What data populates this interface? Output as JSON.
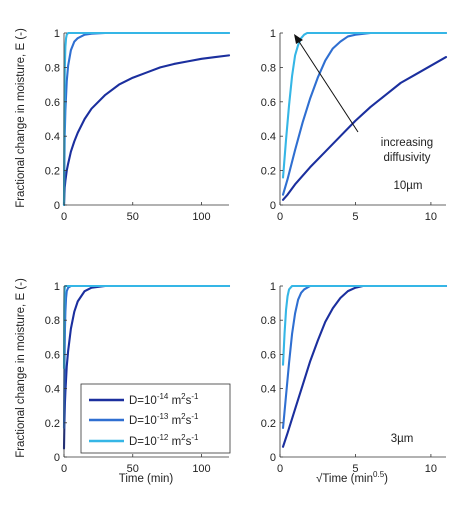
{
  "figure": {
    "ylabel": "Fractional change in moisture, E (-)",
    "legend_entries": [
      {
        "base": "D=10",
        "exp": "-14",
        "unit_base": "m",
        "unit_exp": "2",
        "unit_mid": "s",
        "unit_exp2": "-1",
        "color": "#1b2f9e"
      },
      {
        "base": "D=10",
        "exp": "-13",
        "unit_base": "m",
        "unit_exp": "2",
        "unit_mid": "s",
        "unit_exp2": "-1",
        "color": "#2f6fd1"
      },
      {
        "base": "D=10",
        "exp": "-12",
        "unit_base": "m",
        "unit_exp": "2",
        "unit_mid": "s",
        "unit_exp2": "-1",
        "color": "#35b6e6"
      }
    ],
    "annotation_arrow": {
      "line1": "increasing",
      "line2": "diffusivity"
    },
    "row_labels": {
      "top": "10µm",
      "bottom": "3µm"
    },
    "xlabel_time": "Time (min)",
    "xlabel_sqrt": {
      "prefix": "√Time (min",
      "exp": "0.5",
      "suffix": ")"
    }
  },
  "chart_data": [
    {
      "type": "line",
      "panel": "top-left",
      "xlabel": "",
      "ylabel": "Fractional change in moisture, E (-)",
      "xlim": [
        0,
        120
      ],
      "ylim": [
        0,
        1.0
      ],
      "xticks": [
        0,
        50,
        100
      ],
      "yticks": [
        0,
        0.2,
        0.4,
        0.6,
        0.8,
        1
      ],
      "grid": false,
      "series": [
        {
          "x": [
            0,
            0.5,
            1,
            2,
            3,
            5,
            7.5,
            10,
            15,
            20,
            30,
            40,
            50,
            60,
            70,
            80,
            90,
            100,
            110,
            120
          ],
          "y": [
            0,
            0.1,
            0.14,
            0.2,
            0.24,
            0.31,
            0.37,
            0.42,
            0.5,
            0.56,
            0.64,
            0.7,
            0.74,
            0.77,
            0.8,
            0.82,
            0.835,
            0.85,
            0.86,
            0.87
          ]
        },
        {
          "x": [
            0,
            0.5,
            1,
            2,
            3,
            5,
            7.5,
            10,
            15,
            20,
            30,
            40,
            60,
            120
          ],
          "y": [
            0,
            0.4,
            0.55,
            0.72,
            0.81,
            0.9,
            0.95,
            0.97,
            0.99,
            0.996,
            1,
            1,
            1,
            1
          ]
        },
        {
          "x": [
            0,
            0.3,
            0.6,
            1,
            1.5,
            2,
            3,
            5,
            120
          ],
          "y": [
            0,
            0.55,
            0.8,
            0.92,
            0.97,
            0.99,
            1,
            1,
            1
          ]
        }
      ]
    },
    {
      "type": "line",
      "panel": "top-right",
      "xlabel": "",
      "ylabel": "",
      "xlim": [
        0,
        11
      ],
      "ylim": [
        0,
        1.0
      ],
      "xticks": [
        0,
        5,
        10
      ],
      "yticks": [
        0,
        0.2,
        0.4,
        0.6,
        0.8,
        1
      ],
      "grid": false,
      "series": [
        {
          "x": [
            0.2,
            0.5,
            1,
            2,
            3,
            4,
            5,
            6,
            7,
            8,
            9,
            10,
            11
          ],
          "y": [
            0.03,
            0.06,
            0.12,
            0.22,
            0.31,
            0.4,
            0.49,
            0.57,
            0.64,
            0.71,
            0.76,
            0.81,
            0.86
          ]
        },
        {
          "x": [
            0.2,
            0.5,
            1,
            1.5,
            2,
            2.5,
            3,
            3.5,
            4,
            4.5,
            5,
            6,
            7,
            11
          ],
          "y": [
            0.06,
            0.15,
            0.32,
            0.48,
            0.62,
            0.74,
            0.84,
            0.91,
            0.95,
            0.98,
            0.99,
            1,
            1,
            1
          ]
        },
        {
          "x": [
            0.2,
            0.4,
            0.6,
            0.8,
            1,
            1.2,
            1.4,
            1.6,
            1.8,
            2,
            2.5,
            11
          ],
          "y": [
            0.16,
            0.38,
            0.58,
            0.75,
            0.87,
            0.93,
            0.97,
            0.99,
            1,
            1,
            1,
            1
          ]
        }
      ]
    },
    {
      "type": "line",
      "panel": "bottom-left",
      "xlabel": "Time (min)",
      "ylabel": "Fractional change in moisture, E (-)",
      "xlim": [
        0,
        120
      ],
      "ylim": [
        0,
        1.0
      ],
      "xticks": [
        0,
        50,
        100
      ],
      "yticks": [
        0,
        0.2,
        0.4,
        0.6,
        0.8,
        1
      ],
      "grid": false,
      "series": [
        {
          "x": [
            0,
            0.3,
            0.7,
            1,
            2,
            3,
            5,
            7.5,
            10,
            15,
            20,
            30,
            40,
            60,
            120
          ],
          "y": [
            0.05,
            0.2,
            0.32,
            0.38,
            0.53,
            0.62,
            0.75,
            0.85,
            0.91,
            0.97,
            0.99,
            1,
            1,
            1,
            1
          ]
        },
        {
          "x": [
            0,
            0.3,
            0.7,
            1,
            1.5,
            2,
            3,
            5,
            120
          ],
          "y": [
            0.17,
            0.5,
            0.75,
            0.85,
            0.93,
            0.97,
            0.99,
            1,
            1
          ]
        },
        {
          "x": [
            0,
            0.2,
            0.4,
            0.6,
            1,
            120
          ],
          "y": [
            0.52,
            0.88,
            0.97,
            0.99,
            1,
            1
          ]
        }
      ]
    },
    {
      "type": "line",
      "panel": "bottom-right",
      "xlabel": "√Time (min0.5)",
      "ylabel": "",
      "xlim": [
        0,
        11
      ],
      "ylim": [
        0,
        1.0
      ],
      "xticks": [
        0,
        5,
        10
      ],
      "yticks": [
        0,
        0.2,
        0.4,
        0.6,
        0.8,
        1
      ],
      "grid": false,
      "series": [
        {
          "x": [
            0.2,
            0.5,
            1,
            1.5,
            2,
            2.5,
            3,
            3.5,
            4,
            4.5,
            5,
            5.5,
            6,
            7,
            11
          ],
          "y": [
            0.06,
            0.14,
            0.28,
            0.42,
            0.56,
            0.68,
            0.79,
            0.87,
            0.93,
            0.97,
            0.99,
            1,
            1,
            1,
            1
          ]
        },
        {
          "x": [
            0.2,
            0.4,
            0.6,
            0.8,
            1,
            1.2,
            1.4,
            1.6,
            1.8,
            2,
            2.5,
            3,
            11
          ],
          "y": [
            0.17,
            0.36,
            0.55,
            0.72,
            0.84,
            0.92,
            0.96,
            0.98,
            0.99,
            1,
            1,
            1,
            1
          ]
        },
        {
          "x": [
            0.2,
            0.3,
            0.4,
            0.5,
            0.6,
            0.7,
            0.8,
            1,
            11
          ],
          "y": [
            0.54,
            0.72,
            0.86,
            0.94,
            0.98,
            0.99,
            1,
            1,
            1
          ]
        }
      ]
    }
  ]
}
